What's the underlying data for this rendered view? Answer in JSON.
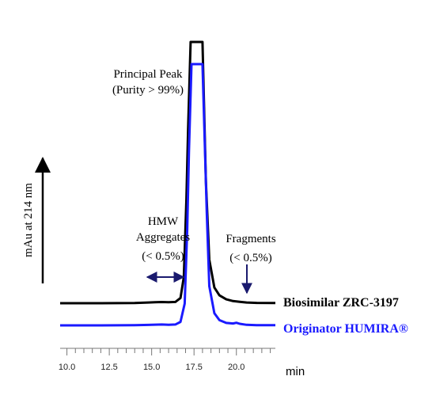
{
  "chart_data": {
    "type": "line",
    "ylabel": "mAu at 214 nm",
    "xunit": "min",
    "xlim": [
      9.6,
      22.3
    ],
    "x_ticks": [
      10.0,
      12.5,
      15.0,
      17.5,
      20.0
    ],
    "x_tick_labels": [
      "10.0",
      "12.5",
      "15.0",
      "17.5",
      "20.0"
    ],
    "grid": false,
    "series": [
      {
        "name": "Biosimilar ZRC-3197",
        "color": "#000000",
        "x": [
          9.6,
          12.0,
          14.0,
          14.8,
          15.2,
          15.6,
          16.0,
          16.4,
          16.7,
          16.9,
          17.05,
          17.15,
          17.3,
          17.6,
          18.0,
          18.2,
          18.4,
          18.7,
          19.0,
          19.4,
          19.8,
          20.2,
          20.6,
          21.2,
          22.3
        ],
        "values": [
          0.0,
          0.0,
          0.2,
          0.8,
          1.2,
          1.4,
          1.1,
          1.5,
          6.0,
          30.0,
          120.0,
          200.0,
          300.0,
          300.0,
          300.0,
          140.0,
          50.0,
          18.0,
          9.0,
          4.5,
          2.5,
          1.6,
          0.8,
          0.4,
          0.2
        ]
      },
      {
        "name": "Originator HUMIRA®",
        "color": "#1a1aff",
        "x": [
          9.6,
          12.0,
          14.0,
          14.8,
          15.2,
          15.6,
          16.0,
          16.4,
          16.7,
          16.95,
          17.1,
          17.2,
          17.35,
          17.6,
          18.0,
          18.25,
          18.4,
          18.7,
          19.0,
          19.4,
          19.8,
          20.0,
          20.2,
          20.6,
          21.2,
          22.3
        ],
        "values": [
          0.0,
          0.0,
          0.2,
          0.5,
          0.8,
          1.0,
          0.6,
          1.0,
          4.0,
          25.0,
          110.0,
          200.0,
          300.0,
          300.0,
          300.0,
          130.0,
          45.0,
          14.0,
          6.0,
          2.8,
          2.2,
          3.0,
          1.8,
          0.6,
          0.3,
          0.2
        ]
      }
    ],
    "annotations": {
      "principal_peak": [
        "Principal Peak",
        "(Purity > 99%)"
      ],
      "hmw": [
        "HMW",
        "Aggregates",
        "(< 0.5%)"
      ],
      "fragments": [
        "Fragments",
        "(< 0.5%)"
      ]
    },
    "legend_placement": "right, beside each trace"
  }
}
